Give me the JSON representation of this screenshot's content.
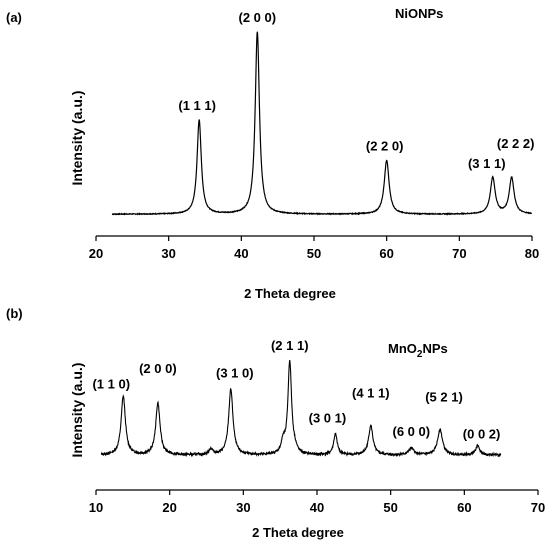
{
  "chart_data": [
    {
      "type": "line",
      "panel_label": "(a)",
      "annotation": "NiONPs",
      "xlabel": "2 Theta degree",
      "ylabel": "Intensity (a.u.)",
      "xlim": [
        20,
        80
      ],
      "ylim": [
        0,
        100
      ],
      "xticks": [
        20,
        30,
        40,
        50,
        60,
        70,
        80
      ],
      "grid": false,
      "baseline": 3,
      "noise": 0.2,
      "peaks": [
        {
          "label": "(1 1 1)",
          "x": 34.2,
          "y": 52,
          "width": 0.35
        },
        {
          "label": "(2 0 0)",
          "x": 42.2,
          "y": 98,
          "width": 0.35
        },
        {
          "label": "(2 2 0)",
          "x": 60.0,
          "y": 31,
          "width": 0.4
        },
        {
          "label": "(3 1 1)",
          "x": 74.6,
          "y": 22,
          "width": 0.4
        },
        {
          "label": "(2 2 2)",
          "x": 77.2,
          "y": 22,
          "width": 0.4
        }
      ]
    },
    {
      "type": "line",
      "panel_label": "(b)",
      "annotation": "MnO",
      "annotation_sub": "2",
      "annotation_suffix": "NPs",
      "xlabel": "2 Theta degree",
      "ylabel": "Intensity (a.u.)",
      "xlim": [
        10,
        70
      ],
      "ylim": [
        0,
        100
      ],
      "xticks": [
        10,
        20,
        30,
        40,
        50,
        60,
        70
      ],
      "grid": false,
      "baseline": 5,
      "noise": 1.2,
      "peaks": [
        {
          "label": "(1 1 0)",
          "x": 13.7,
          "y": 65,
          "width": 0.35
        },
        {
          "label": "(2 0 0)",
          "x": 18.4,
          "y": 58,
          "width": 0.35
        },
        {
          "label": "",
          "x": 25.6,
          "y": 11,
          "width": 0.3
        },
        {
          "label": "(3 1 0)",
          "x": 28.3,
          "y": 72,
          "width": 0.35
        },
        {
          "label": "",
          "x": 35.4,
          "y": 17,
          "width": 0.3
        },
        {
          "label": "(2 1 1)",
          "x": 36.3,
          "y": 100,
          "width": 0.3
        },
        {
          "label": "",
          "x": 37.0,
          "y": 9,
          "width": 0.3
        },
        {
          "label": "(3 0 1)",
          "x": 42.5,
          "y": 26,
          "width": 0.3
        },
        {
          "label": "(4 1 1)",
          "x": 47.3,
          "y": 35,
          "width": 0.35
        },
        {
          "label": "(6 0 0)",
          "x": 52.8,
          "y": 12,
          "width": 0.4
        },
        {
          "label": "(5 2 1)",
          "x": 56.7,
          "y": 31,
          "width": 0.4
        },
        {
          "label": "(0 0 2)",
          "x": 61.8,
          "y": 14,
          "width": 0.35
        }
      ]
    }
  ]
}
